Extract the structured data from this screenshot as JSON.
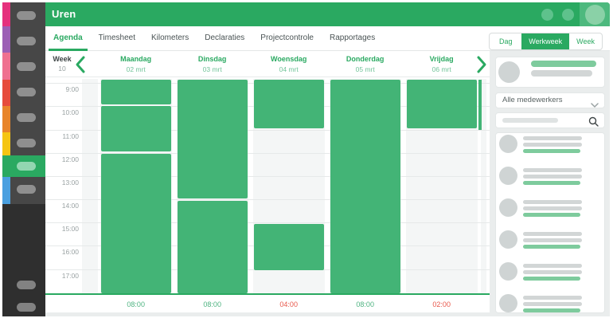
{
  "colors": {
    "green": "#2aa961",
    "block_green": "#43b476",
    "light_green": "#7ecb9d",
    "red": "#e8574a",
    "rail_blue": "#4aa0e0"
  },
  "header": {
    "title": "Uren"
  },
  "sidebar": {
    "rail_colors": [
      "#e5317d",
      "#9c5fb5",
      "#ef7190",
      "#e64c3c",
      "#e8852b",
      "#f5c513",
      "#2aa961",
      "#4aa0e0"
    ],
    "item_count": 8,
    "active_index": 6,
    "footer_item_count": 2
  },
  "tabs": [
    {
      "label": "Agenda",
      "active": true
    },
    {
      "label": "Timesheet",
      "active": false
    },
    {
      "label": "Kilometers",
      "active": false
    },
    {
      "label": "Declaraties",
      "active": false
    },
    {
      "label": "Projectcontrole",
      "active": false
    },
    {
      "label": "Rapportages",
      "active": false
    }
  ],
  "view_switcher": [
    {
      "label": "Dag",
      "active": false
    },
    {
      "label": "Werkweek",
      "active": true
    },
    {
      "label": "Week",
      "active": false
    }
  ],
  "week_nav": {
    "label": "Week",
    "number": "10"
  },
  "calendar": {
    "times": [
      "9:00",
      "10:00",
      "11:00",
      "12:00",
      "13:00",
      "14:00",
      "15:00",
      "16:00",
      "17:00"
    ],
    "days": [
      {
        "name": "Maandag",
        "date": "02 mrt",
        "total": "08:00",
        "total_status": "ok",
        "blocks": [
          [
            8.85,
            9.9
          ],
          [
            10.0,
            11.95
          ],
          [
            12.05,
            18.05
          ]
        ]
      },
      {
        "name": "Dinsdag",
        "date": "03 mrt",
        "total": "08:00",
        "total_status": "ok",
        "blocks": [
          [
            8.85,
            13.95
          ],
          [
            14.05,
            18.05
          ]
        ]
      },
      {
        "name": "Woensdag",
        "date": "04 mrt",
        "total": "04:00",
        "total_status": "under",
        "blocks": [
          [
            8.85,
            10.95
          ],
          [
            15.05,
            17.05
          ]
        ]
      },
      {
        "name": "Donderdag",
        "date": "05 mrt",
        "total": "08:00",
        "total_status": "ok",
        "blocks": [
          [
            8.85,
            18.05
          ]
        ]
      },
      {
        "name": "Vrijdag",
        "date": "06 mrt",
        "total": "02:00",
        "total_status": "under",
        "blocks": [
          [
            8.85,
            10.95
          ]
        ]
      }
    ],
    "next_day_partial_block": [
      8.85,
      11.0
    ]
  },
  "right_panel": {
    "filter_dropdown": "Alle medewerkers",
    "search_placeholder": "",
    "employee_count": 6
  }
}
